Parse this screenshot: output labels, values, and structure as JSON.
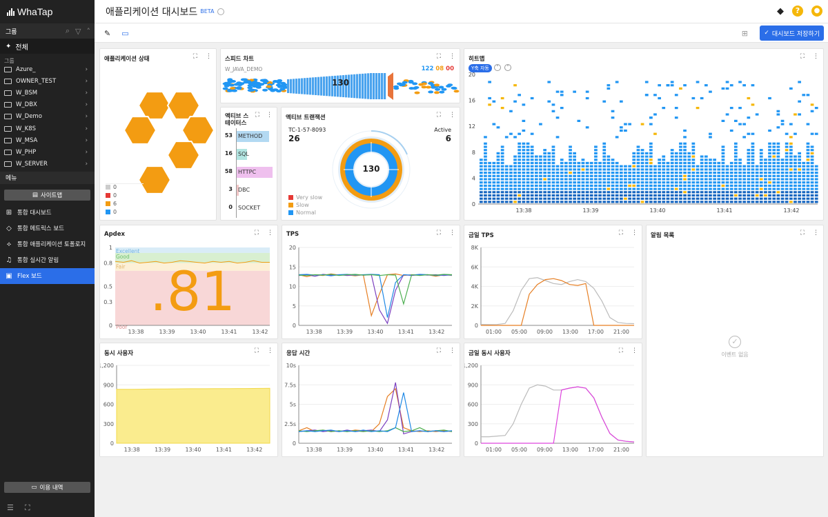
{
  "sidebar": {
    "logo": "WhaTap",
    "group_label": "그룹",
    "all_label": "전체",
    "sub_label": "그룹",
    "groups": [
      "Azure_",
      "OWNER_TEST",
      "W_BSM",
      "W_DBX",
      "W_Demo",
      "W_K8S",
      "W_MSA",
      "W_PHP",
      "W_SERVER"
    ],
    "menu_label": "메뉴",
    "sitemap_label": "사이트맵",
    "menu_items": [
      {
        "label": "통합 대시보드",
        "icon": "grid-icon"
      },
      {
        "label": "통합 메트릭스 보드",
        "icon": "tag-icon"
      },
      {
        "label": "통합 애플리케이션 토폴로지",
        "icon": "topology-icon"
      },
      {
        "label": "통합 실시간 알림",
        "icon": "bell-icon"
      },
      {
        "label": "Flex 보드",
        "icon": "board-icon",
        "active": true
      }
    ],
    "usage_label": "이용 내역"
  },
  "header": {
    "title": "애플리케이션 대시보드",
    "beta": "BETA",
    "save_label": "대시보드 저장하기"
  },
  "panels": {
    "app_status": {
      "title": "애플리케이션 상태",
      "legend": [
        {
          "color": "#cccccc",
          "value": "0"
        },
        {
          "color": "#e53935",
          "value": "0"
        },
        {
          "color": "#f39c12",
          "value": "6"
        },
        {
          "color": "#2196f3",
          "value": "0"
        }
      ]
    },
    "speed": {
      "title": "스피드 차트",
      "agent": "W_JAVA_DEMO",
      "count": "130",
      "normal": "122",
      "slow": "08",
      "very_slow": "00"
    },
    "active_status": {
      "title": "액티브 스테이터스",
      "rows": [
        {
          "value": "53",
          "label": "METHOD",
          "color": "#b3d9f2",
          "ratio": 0.91
        },
        {
          "value": "16",
          "label": "SQL",
          "color": "#b2e5e1",
          "ratio": 0.28
        },
        {
          "value": "58",
          "label": "HTTPC",
          "color": "#efc0ee",
          "ratio": 1.0
        },
        {
          "value": "3",
          "label": "DBC",
          "color": "#f2c6c6",
          "ratio": 0.05
        },
        {
          "value": "0",
          "label": "SOCKET",
          "color": "#dddddd",
          "ratio": 0
        }
      ]
    },
    "active_tx": {
      "title": "액티브 트랜잭션",
      "tx_label": "TC-1-57-8093",
      "tx_value": "26",
      "active_label": "Active",
      "active_value": "6",
      "center": "130",
      "legend": [
        {
          "label": "Very slow",
          "color": "#e53935"
        },
        {
          "label": "Slow",
          "color": "#f39c12"
        },
        {
          "label": "Normal",
          "color": "#2196f3"
        }
      ]
    },
    "heatmap": {
      "title": "히트맵",
      "y_auto": "Y축 자동",
      "y_ticks": [
        "20",
        "16",
        "12",
        "8",
        "4",
        "0"
      ],
      "x_ticks": [
        "13:38",
        "13:39",
        "13:40",
        "13:41",
        "13:42"
      ]
    },
    "apdex": {
      "title": "Apdex",
      "value": ".81",
      "zones": [
        "Excellent",
        "Good",
        "Fair",
        "Poor"
      ],
      "y_ticks": [
        "1",
        "0.8",
        "0.5",
        "0.3",
        "0"
      ],
      "x_ticks": [
        "13:38",
        "13:39",
        "13:40",
        "13:41",
        "13:42"
      ]
    },
    "tps": {
      "title": "TPS",
      "y_ticks": [
        "20",
        "15",
        "10",
        "5",
        "0"
      ],
      "x_ticks": [
        "13:38",
        "13:39",
        "13:40",
        "13:41",
        "13:42"
      ]
    },
    "today_tps": {
      "title": "금일 TPS",
      "y_ticks": [
        "8K",
        "6K",
        "4K",
        "2K",
        "0"
      ],
      "x_ticks": [
        "01:00",
        "05:00",
        "09:00",
        "13:00",
        "17:00",
        "21:00"
      ]
    },
    "alerts": {
      "title": "알림 목록",
      "empty": "이벤트 없음"
    },
    "concurrent": {
      "title": "동시 사용자",
      "y_ticks": [
        "1,200",
        "900",
        "600",
        "300",
        "0"
      ],
      "x_ticks": [
        "13:38",
        "13:39",
        "13:40",
        "13:41",
        "13:42"
      ]
    },
    "response": {
      "title": "응답 시간",
      "y_ticks": [
        "10s",
        "7.5s",
        "5s",
        "2.5s",
        "0"
      ],
      "x_ticks": [
        "13:38",
        "13:39",
        "13:40",
        "13:41",
        "13:42"
      ]
    },
    "today_users": {
      "title": "금일 동시 사용자",
      "y_ticks": [
        "1,200",
        "900",
        "600",
        "300",
        "0"
      ],
      "x_ticks": [
        "01:00",
        "05:00",
        "09:00",
        "13:00",
        "17:00",
        "21:00"
      ]
    }
  },
  "chart_data": [
    {
      "type": "area",
      "title": "Apdex",
      "ylim": [
        0,
        1
      ],
      "series": [
        {
          "values": [
            0.82,
            0.81,
            0.83,
            0.8,
            0.81,
            0.82,
            0.8,
            0.81,
            0.83,
            0.82,
            0.81,
            0.8,
            0.82,
            0.81,
            0.82,
            0.8,
            0.81,
            0.83,
            0.81,
            0.81
          ]
        }
      ]
    },
    {
      "type": "line",
      "title": "TPS",
      "ylim": [
        0,
        20
      ],
      "series": [
        {
          "values": [
            13,
            12.5,
            13,
            12.8,
            13.2,
            12.9,
            13,
            12.7,
            13,
            2.5,
            8,
            13,
            13.2,
            12.8,
            13,
            12.9,
            13,
            12.6,
            13,
            12.8
          ]
        },
        {
          "values": [
            12.8,
            13,
            12.6,
            13.1,
            12.9,
            13,
            12.8,
            13,
            12.9,
            13,
            4,
            0.5,
            9,
            13,
            12.8,
            13,
            12.9,
            13,
            12.8,
            13
          ]
        },
        {
          "values": [
            13,
            13.1,
            12.9,
            13,
            12.7,
            13,
            13.1,
            12.9,
            13,
            13.1,
            13,
            2,
            11,
            13,
            12.9,
            13.1,
            13,
            12.8,
            13,
            12.9
          ]
        },
        {
          "values": [
            12.9,
            12.8,
            13,
            12.9,
            13.1,
            12.8,
            13,
            13.1,
            12.9,
            13,
            12.8,
            13,
            12.9,
            5.5,
            13,
            12.8,
            13,
            12.9,
            13.1,
            13
          ]
        }
      ]
    },
    {
      "type": "line",
      "title": "금일 TPS",
      "ylim": [
        0,
        8000
      ],
      "series": [
        {
          "values": [
            100,
            80,
            90,
            200,
            1500,
            3600,
            4800,
            4900,
            4600,
            4300,
            4200,
            4500,
            4700,
            4500,
            3800,
            2500,
            800,
            300,
            200,
            180
          ]
        },
        {
          "values": [
            0,
            0,
            0,
            0,
            0,
            0,
            3200,
            4200,
            4700,
            4800,
            4600,
            4200,
            4100,
            4300,
            0,
            0,
            0,
            0,
            0,
            0
          ]
        }
      ]
    },
    {
      "type": "area",
      "title": "동시 사용자",
      "ylim": [
        0,
        1200
      ],
      "series": [
        {
          "values": [
            830,
            830,
            832,
            833,
            835,
            836,
            837,
            838,
            839,
            840,
            840,
            840,
            841,
            842,
            842,
            843,
            843,
            844,
            845,
            846
          ]
        }
      ]
    },
    {
      "type": "line",
      "title": "응답 시간",
      "ylim": [
        0,
        10
      ],
      "series": [
        {
          "values": [
            1.6,
            2,
            1.5,
            1.7,
            1.5,
            1.6,
            1.5,
            1.7,
            1.6,
            1.5,
            2.5,
            6,
            7,
            2,
            1.6,
            1.5,
            1.6,
            1.5,
            1.6,
            1.5
          ]
        },
        {
          "values": [
            1.5,
            1.6,
            1.7,
            1.5,
            1.6,
            1.5,
            1.7,
            1.5,
            1.6,
            1.7,
            1.5,
            3,
            7.8,
            1.2,
            1.5,
            1.6,
            1.5,
            1.6,
            1.5,
            1.6
          ]
        },
        {
          "values": [
            1.6,
            1.5,
            1.6,
            1.7,
            1.5,
            1.6,
            1.5,
            1.6,
            1.5,
            1.6,
            1.5,
            1.6,
            2,
            1.5,
            1.6,
            2,
            1.5,
            1.6,
            1.7,
            1.5
          ]
        },
        {
          "values": [
            1.5,
            1.6,
            1.5,
            1.6,
            1.7,
            1.5,
            1.6,
            1.5,
            1.7,
            1.5,
            1.6,
            1.5,
            2,
            6.5,
            1.5,
            1.6,
            1.5,
            1.6,
            1.5,
            1.6
          ]
        }
      ]
    },
    {
      "type": "line",
      "title": "금일 동시 사용자",
      "ylim": [
        0,
        1200
      ],
      "series": [
        {
          "values": [
            100,
            100,
            110,
            120,
            300,
            600,
            850,
            900,
            880,
            820,
            820,
            850,
            870,
            850,
            700,
            400,
            150,
            50,
            30,
            20
          ]
        },
        {
          "values": [
            0,
            0,
            0,
            0,
            0,
            0,
            0,
            0,
            0,
            0,
            820,
            850,
            870,
            850,
            700,
            400,
            150,
            50,
            30,
            20
          ]
        }
      ]
    }
  ]
}
